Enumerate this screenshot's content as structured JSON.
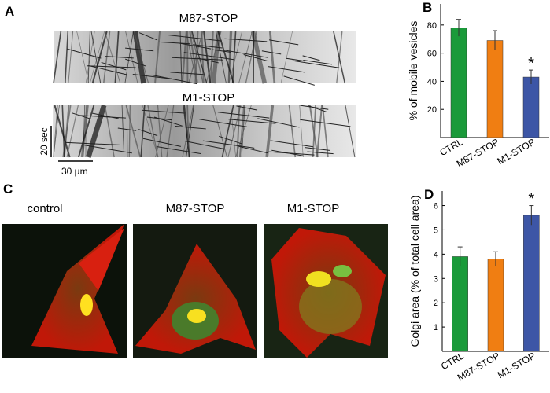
{
  "panels": {
    "A": {
      "label": "A",
      "kymographs": [
        "M87-STOP",
        "M1-STOP"
      ],
      "time_scale": "20 sec",
      "space_scale": "30 μm"
    },
    "C": {
      "label": "C",
      "images": [
        "control",
        "M87-STOP",
        "M1-STOP"
      ]
    }
  },
  "chart_data": [
    {
      "type": "bar",
      "panel_label": "B",
      "ylabel": "% of mobile vesicles",
      "categories": [
        "CTRL",
        "M87-STOP",
        "M1-STOP"
      ],
      "values": [
        78,
        69,
        43
      ],
      "errors": [
        6,
        7,
        5
      ],
      "colors": [
        "#1a9a3a",
        "#f07e12",
        "#3d56a6"
      ],
      "ylim": [
        0,
        95
      ],
      "yticks": [
        20,
        40,
        60,
        80
      ],
      "annotations": [
        {
          "text": "*",
          "category": "M1-STOP"
        }
      ]
    },
    {
      "type": "bar",
      "panel_label": "D",
      "ylabel": "Golgi area (% of total cell area)",
      "categories": [
        "CTRL",
        "M87-STOP",
        "M1-STOP"
      ],
      "values": [
        3.9,
        3.8,
        5.6
      ],
      "errors": [
        0.4,
        0.3,
        0.4
      ],
      "colors": [
        "#1a9a3a",
        "#f07e12",
        "#3d56a6"
      ],
      "ylim": [
        0,
        6.6
      ],
      "yticks": [
        1,
        2,
        3,
        4,
        5,
        6
      ],
      "annotations": [
        {
          "text": "*",
          "category": "M1-STOP"
        }
      ]
    }
  ]
}
